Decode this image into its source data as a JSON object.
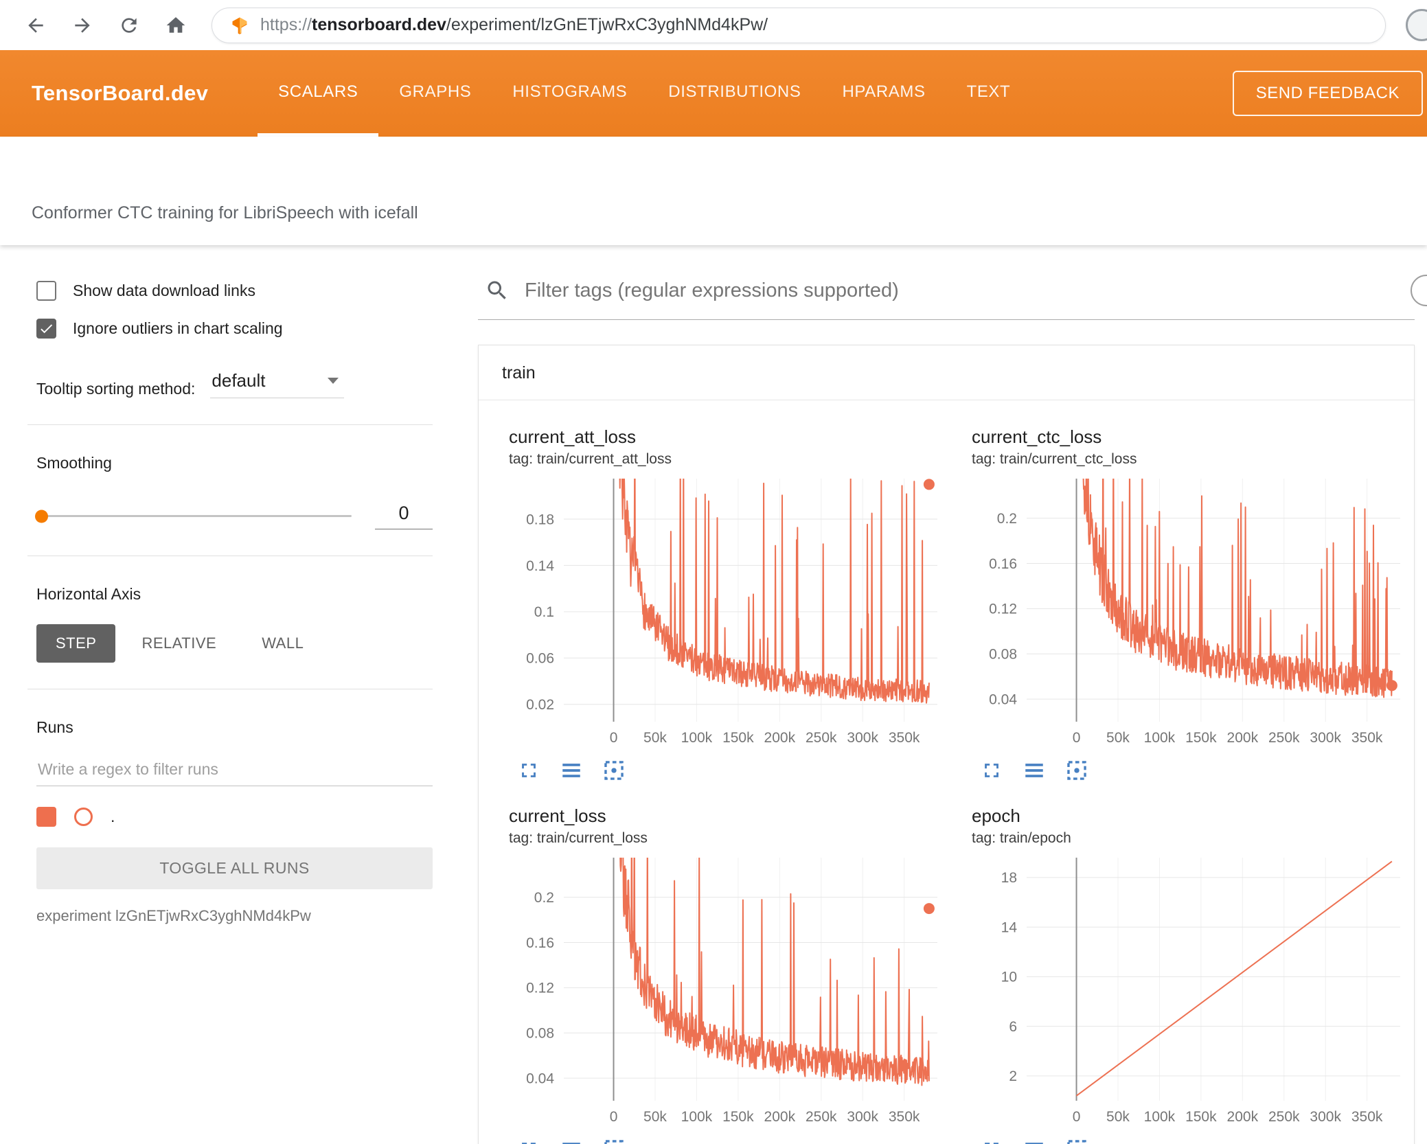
{
  "browser": {
    "url_prefix": "https://",
    "url_domain": "tensorboard.dev",
    "url_path": "/experiment/lzGnETjwRxC3yghNMd4kPw/"
  },
  "header": {
    "logo": "TensorBoard.dev",
    "nav": [
      {
        "label": "SCALARS",
        "active": true
      },
      {
        "label": "GRAPHS",
        "active": false
      },
      {
        "label": "HISTOGRAMS",
        "active": false
      },
      {
        "label": "DISTRIBUTIONS",
        "active": false
      },
      {
        "label": "HPARAMS",
        "active": false
      },
      {
        "label": "TEXT",
        "active": false
      }
    ],
    "feedback_button": "SEND FEEDBACK"
  },
  "experiment_title": "Conformer CTC training for LibriSpeech with icefall",
  "sidebar": {
    "show_download": {
      "label": "Show data download links",
      "checked": false
    },
    "ignore_outliers": {
      "label": "Ignore outliers in chart scaling",
      "checked": true
    },
    "tooltip_sort": {
      "label": "Tooltip sorting method:",
      "value": "default"
    },
    "smoothing": {
      "label": "Smoothing",
      "value": "0"
    },
    "horizontal_axis": {
      "label": "Horizontal Axis",
      "options": [
        "STEP",
        "RELATIVE",
        "WALL"
      ],
      "selected": "STEP"
    },
    "runs": {
      "label": "Runs",
      "filter_placeholder": "Write a regex to filter runs",
      "run_item": {
        "label": ".",
        "checked": true,
        "color": "#ee6f4e"
      },
      "toggle_button": "TOGGLE ALL RUNS",
      "experiment_caption": "experiment lzGnETjwRxC3yghNMd4kPw"
    }
  },
  "main": {
    "filter_placeholder": "Filter tags (regular expressions supported)",
    "section_title": "train"
  },
  "colors": {
    "accent": "#f57c00",
    "line": "#ed7152",
    "icon_blue": "#4780c2"
  },
  "chart_data": [
    {
      "id": "current_att_loss",
      "type": "line",
      "title": "current_att_loss",
      "tag": "tag: train/current_att_loss",
      "xlim": [
        -60000,
        390000
      ],
      "xticks": [
        0,
        50000,
        100000,
        150000,
        200000,
        250000,
        300000,
        350000
      ],
      "xtick_labels": [
        "0",
        "50k",
        "100k",
        "150k",
        "200k",
        "250k",
        "300k",
        "350k"
      ],
      "ylim": [
        0.005,
        0.215
      ],
      "yticks": [
        0.02,
        0.06,
        0.1,
        0.14,
        0.18
      ],
      "ytick_labels": [
        "0.02",
        "0.06",
        "0.1",
        "0.14",
        "0.18"
      ],
      "trend": [
        [
          0,
          0.34
        ],
        [
          8000,
          0.22
        ],
        [
          20000,
          0.14
        ],
        [
          40000,
          0.09
        ],
        [
          70000,
          0.065
        ],
        [
          110000,
          0.05
        ],
        [
          160000,
          0.042
        ],
        [
          220000,
          0.036
        ],
        [
          300000,
          0.03
        ],
        [
          380000,
          0.028
        ]
      ],
      "noise": 0.018,
      "spike": 0.16,
      "spike_prob": 0.06,
      "seed": 7,
      "end_dot": [
        380000,
        0.21
      ]
    },
    {
      "id": "current_ctc_loss",
      "type": "line",
      "title": "current_ctc_loss",
      "tag": "tag: train/current_ctc_loss",
      "xlim": [
        -60000,
        390000
      ],
      "xticks": [
        0,
        50000,
        100000,
        150000,
        200000,
        250000,
        300000,
        350000
      ],
      "xtick_labels": [
        "0",
        "50k",
        "100k",
        "150k",
        "200k",
        "250k",
        "300k",
        "350k"
      ],
      "ylim": [
        0.02,
        0.235
      ],
      "yticks": [
        0.04,
        0.08,
        0.12,
        0.16,
        0.2
      ],
      "ytick_labels": [
        "0.04",
        "0.08",
        "0.12",
        "0.16",
        "0.2"
      ],
      "trend": [
        [
          0,
          0.34
        ],
        [
          8000,
          0.24
        ],
        [
          20000,
          0.17
        ],
        [
          40000,
          0.12
        ],
        [
          70000,
          0.095
        ],
        [
          110000,
          0.08
        ],
        [
          160000,
          0.07
        ],
        [
          220000,
          0.062
        ],
        [
          300000,
          0.055
        ],
        [
          380000,
          0.05
        ]
      ],
      "noise": 0.02,
      "spike": 0.14,
      "spike_prob": 0.06,
      "seed": 13,
      "end_dot": [
        380000,
        0.052
      ]
    },
    {
      "id": "current_loss",
      "type": "line",
      "title": "current_loss",
      "tag": "tag: train/current_loss",
      "xlim": [
        -60000,
        390000
      ],
      "xticks": [
        0,
        50000,
        100000,
        150000,
        200000,
        250000,
        300000,
        350000
      ],
      "xtick_labels": [
        "0",
        "50k",
        "100k",
        "150k",
        "200k",
        "250k",
        "300k",
        "350k"
      ],
      "ylim": [
        0.02,
        0.235
      ],
      "yticks": [
        0.04,
        0.08,
        0.12,
        0.16,
        0.2
      ],
      "ytick_labels": [
        "0.04",
        "0.08",
        "0.12",
        "0.16",
        "0.2"
      ],
      "trend": [
        [
          0,
          0.34
        ],
        [
          8000,
          0.23
        ],
        [
          20000,
          0.16
        ],
        [
          40000,
          0.11
        ],
        [
          70000,
          0.085
        ],
        [
          110000,
          0.07
        ],
        [
          160000,
          0.06
        ],
        [
          220000,
          0.052
        ],
        [
          300000,
          0.046
        ],
        [
          380000,
          0.042
        ]
      ],
      "noise": 0.02,
      "spike": 0.15,
      "spike_prob": 0.06,
      "seed": 21,
      "end_dot": [
        380000,
        0.19
      ]
    },
    {
      "id": "epoch",
      "type": "line",
      "title": "epoch",
      "tag": "tag: train/epoch",
      "xlim": [
        -60000,
        390000
      ],
      "xticks": [
        0,
        50000,
        100000,
        150000,
        200000,
        250000,
        300000,
        350000
      ],
      "xtick_labels": [
        "0",
        "50k",
        "100k",
        "150k",
        "200k",
        "250k",
        "300k",
        "350k"
      ],
      "ylim": [
        0,
        19.6
      ],
      "yticks": [
        2,
        6,
        10,
        14,
        18
      ],
      "ytick_labels": [
        "2",
        "6",
        "10",
        "14",
        "18"
      ],
      "points": [
        [
          0,
          0.4
        ],
        [
          380000,
          19.3
        ]
      ]
    }
  ]
}
